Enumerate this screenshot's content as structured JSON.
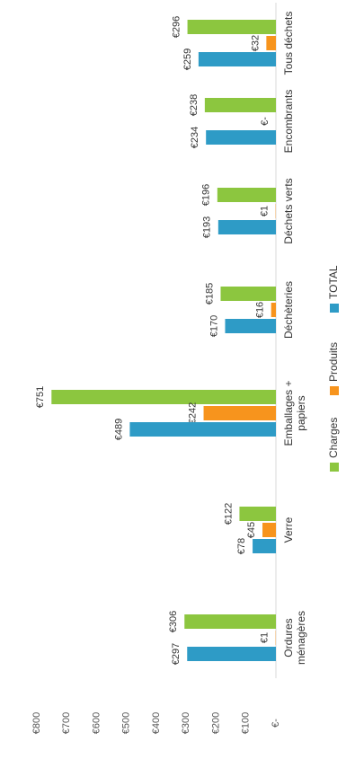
{
  "chart_data": {
    "type": "bar",
    "orientation": "rotated-90-ccw",
    "categories": [
      "Ordures ménagères",
      "Verre",
      "Emballages + papiers",
      "Déchèteries",
      "Déchets verts",
      "Encombrants",
      "Tous déchets"
    ],
    "series": [
      {
        "name": "Charges",
        "color": "#8cc63f",
        "values": [
          306,
          122,
          751,
          185,
          196,
          238,
          296
        ],
        "labels": [
          "€306",
          "€122",
          "€751",
          "€185",
          "€196",
          "€238",
          "€296"
        ]
      },
      {
        "name": "Produits",
        "color": "#f7941d",
        "values": [
          1,
          45,
          242,
          16,
          1,
          0,
          32
        ],
        "labels": [
          "€1",
          "€45",
          "€242",
          "€16",
          "€1",
          "€-",
          "€32"
        ]
      },
      {
        "name": "TOTAL",
        "color": "#2e9bc6",
        "values": [
          297,
          78,
          489,
          170,
          193,
          234,
          259
        ],
        "labels": [
          "€297",
          "€78",
          "€489",
          "€170",
          "€193",
          "€234",
          "€259"
        ]
      }
    ],
    "ylim": [
      0,
      800
    ],
    "yticks": [
      "€-",
      "€100",
      "€200",
      "€300",
      "€400",
      "€500",
      "€600",
      "€700",
      "€800"
    ],
    "grid": false,
    "legend_position": "bottom"
  }
}
